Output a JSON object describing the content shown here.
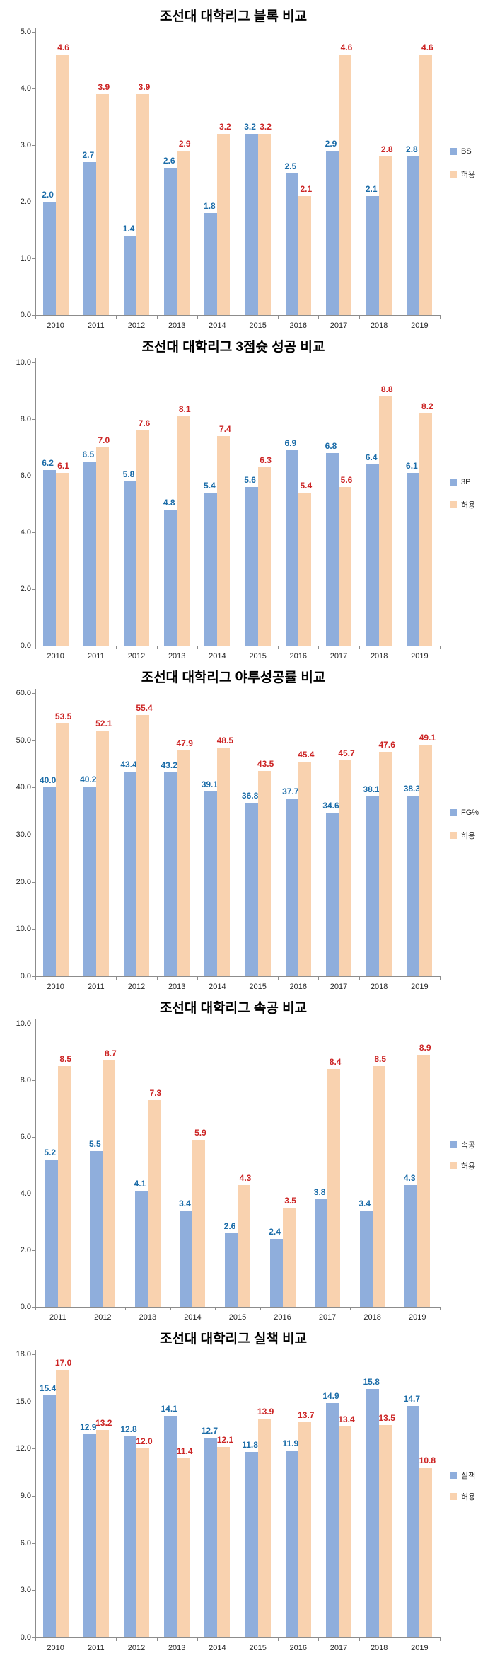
{
  "colors": {
    "series1_bar": "#8FAEDC",
    "series2_bar": "#F9D2AF",
    "series1_label": "#1B6CA8",
    "series2_label": "#CC2424",
    "axis": "#8c8c8c"
  },
  "chart_data": [
    {
      "type": "bar",
      "title": "조선대 대학리그 블록 비교",
      "categories": [
        "2010",
        "2011",
        "2012",
        "2013",
        "2014",
        "2015",
        "2016",
        "2017",
        "2018",
        "2019"
      ],
      "series": [
        {
          "name": "BS",
          "color": "#8FAEDC",
          "label_color": "#1B6CA8",
          "values": [
            2.0,
            2.7,
            1.4,
            2.6,
            1.8,
            3.2,
            2.5,
            2.9,
            2.1,
            2.8
          ]
        },
        {
          "name": "허용",
          "color": "#F9D2AF",
          "label_color": "#CC2424",
          "values": [
            4.6,
            3.9,
            3.9,
            2.9,
            3.2,
            3.2,
            2.1,
            4.6,
            2.8,
            4.6
          ]
        }
      ],
      "ylim": [
        0,
        5
      ],
      "ytick_step": 1,
      "grid": false,
      "legend_position": "right"
    },
    {
      "type": "bar",
      "title": "조선대 대학리그 3점슛 성공 비교",
      "categories": [
        "2010",
        "2011",
        "2012",
        "2013",
        "2014",
        "2015",
        "2016",
        "2017",
        "2018",
        "2019"
      ],
      "series": [
        {
          "name": "3P",
          "color": "#8FAEDC",
          "label_color": "#1B6CA8",
          "values": [
            6.2,
            6.5,
            5.8,
            4.8,
            5.4,
            5.6,
            6.9,
            6.8,
            6.4,
            6.1
          ]
        },
        {
          "name": "허용",
          "color": "#F9D2AF",
          "label_color": "#CC2424",
          "values": [
            6.1,
            7.0,
            7.6,
            8.1,
            7.4,
            6.3,
            5.4,
            5.6,
            8.8,
            8.2
          ]
        }
      ],
      "ylim": [
        0,
        10
      ],
      "ytick_step": 2,
      "grid": false,
      "legend_position": "right"
    },
    {
      "type": "bar",
      "title": "조선대 대학리그 야투성공률 비교",
      "categories": [
        "2010",
        "2011",
        "2012",
        "2013",
        "2014",
        "2015",
        "2016",
        "2017",
        "2018",
        "2019"
      ],
      "series": [
        {
          "name": "FG%",
          "color": "#8FAEDC",
          "label_color": "#1B6CA8",
          "values": [
            40.0,
            40.2,
            43.4,
            43.2,
            39.1,
            36.8,
            37.7,
            34.6,
            38.1,
            38.3
          ]
        },
        {
          "name": "허용",
          "color": "#F9D2AF",
          "label_color": "#CC2424",
          "values": [
            53.5,
            52.1,
            55.4,
            47.9,
            48.5,
            43.5,
            45.4,
            45.7,
            47.6,
            49.1
          ]
        }
      ],
      "ylim": [
        0,
        60
      ],
      "ytick_step": 10,
      "grid": false,
      "legend_position": "right"
    },
    {
      "type": "bar",
      "title": "조선대 대학리그 속공 비교",
      "categories": [
        "2011",
        "2012",
        "2013",
        "2014",
        "2015",
        "2016",
        "2017",
        "2018",
        "2019"
      ],
      "series": [
        {
          "name": "속공",
          "color": "#8FAEDC",
          "label_color": "#1B6CA8",
          "values": [
            5.2,
            5.5,
            4.1,
            3.4,
            2.6,
            2.4,
            3.8,
            3.4,
            4.3
          ]
        },
        {
          "name": "허용",
          "color": "#F9D2AF",
          "label_color": "#CC2424",
          "values": [
            8.5,
            8.7,
            7.3,
            5.9,
            4.3,
            3.5,
            8.4,
            8.5,
            8.9
          ]
        }
      ],
      "ylim": [
        0,
        10
      ],
      "ytick_step": 2,
      "grid": false,
      "legend_position": "right"
    },
    {
      "type": "bar",
      "title": "조선대 대학리그 실책 비교",
      "categories": [
        "2010",
        "2011",
        "2012",
        "2013",
        "2014",
        "2015",
        "2016",
        "2017",
        "2018",
        "2019"
      ],
      "series": [
        {
          "name": "실책",
          "color": "#8FAEDC",
          "label_color": "#1B6CA8",
          "values": [
            15.4,
            12.9,
            12.8,
            14.1,
            12.7,
            11.8,
            11.9,
            14.9,
            15.8,
            14.7
          ]
        },
        {
          "name": "허용",
          "color": "#F9D2AF",
          "label_color": "#CC2424",
          "values": [
            17.0,
            13.2,
            12.0,
            11.4,
            12.1,
            13.9,
            13.7,
            13.4,
            13.5,
            10.8
          ]
        }
      ],
      "ylim": [
        0,
        18
      ],
      "ytick_step": 3,
      "grid": false,
      "legend_position": "right"
    }
  ]
}
